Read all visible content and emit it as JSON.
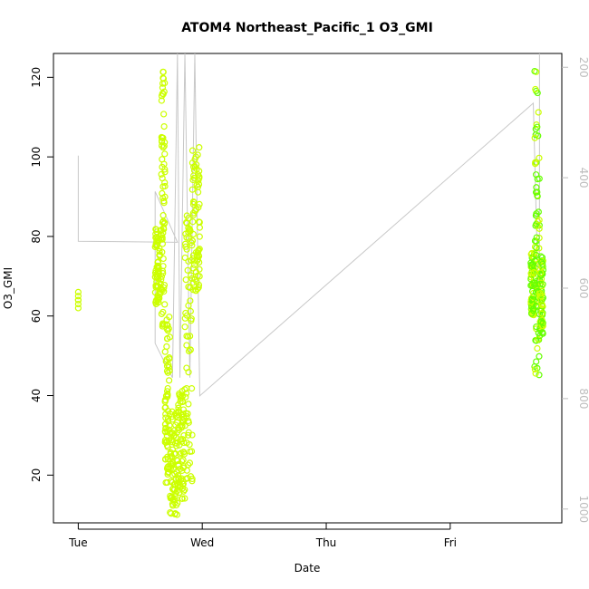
{
  "chart_data": {
    "type": "scatter",
    "title": "ATOM4 Northeast_Pacific_1 O3_GMI",
    "xlabel": "Date",
    "ylabel": "O3_GMI",
    "x_tick_labels": [
      "Tue",
      "Wed",
      "Thu",
      "Fri"
    ],
    "x_range_days": [
      -0.2,
      3.9
    ],
    "y_range": [
      8,
      126
    ],
    "y_ticks": [
      20,
      40,
      60,
      80,
      100,
      120
    ],
    "y2_ticks": [
      200,
      400,
      600,
      800,
      1000
    ],
    "y2_range_reversed": [
      1025,
      175
    ],
    "point_color": "#ccff00",
    "point_color_alt": "#66ff00",
    "line_color": "#c8c8c8",
    "axis_color_right": "#bdbdbd",
    "series": [
      {
        "kind": "points",
        "x_days": [
          0.0,
          0.0,
          0.0,
          0.0,
          0.0,
          0.0
        ],
        "y": [
          62,
          63,
          64,
          65,
          66,
          64
        ]
      },
      {
        "kind": "points_dense",
        "segments": [
          {
            "x_start": 0.62,
            "x_end": 0.67,
            "y_min": 63,
            "y_max": 82
          },
          {
            "x_start": 0.67,
            "x_end": 0.7,
            "y_min": 56,
            "y_max": 122
          },
          {
            "x_start": 0.7,
            "x_end": 0.74,
            "y_min": 18,
            "y_max": 60
          },
          {
            "x_start": 0.74,
            "x_end": 0.8,
            "y_min": 10,
            "y_max": 36
          },
          {
            "x_start": 0.8,
            "x_end": 0.86,
            "y_min": 14,
            "y_max": 42
          },
          {
            "x_start": 0.86,
            "x_end": 0.92,
            "y_min": 18,
            "y_max": 86
          },
          {
            "x_start": 0.92,
            "x_end": 0.98,
            "y_min": 66,
            "y_max": 104
          }
        ]
      },
      {
        "kind": "points_dense",
        "segments": [
          {
            "x_start": 3.65,
            "x_end": 3.68,
            "y_min": 60,
            "y_max": 76
          },
          {
            "x_start": 3.68,
            "x_end": 3.72,
            "y_min": 45,
            "y_max": 122
          },
          {
            "x_start": 3.72,
            "x_end": 3.75,
            "y_min": 55,
            "y_max": 75
          }
        ]
      },
      {
        "kind": "pressure_line",
        "x_days": [
          0.0,
          0.0,
          0.0,
          0.8,
          0.62,
          0.62,
          0.62,
          0.72,
          0.72,
          0.76,
          0.76,
          0.8,
          0.8,
          0.82,
          0.82,
          0.86,
          0.86,
          0.9,
          0.9,
          0.94,
          0.94,
          0.98,
          0.98,
          3.67,
          3.67,
          3.72,
          3.72
        ],
        "p_hpa": [
          360,
          360,
          515,
          517,
          425,
          700,
          700,
          745,
          745,
          762,
          762,
          175,
          175,
          762,
          762,
          175,
          175,
          762,
          762,
          175,
          175,
          795,
          795,
          265,
          265,
          700,
          175
        ]
      }
    ]
  }
}
